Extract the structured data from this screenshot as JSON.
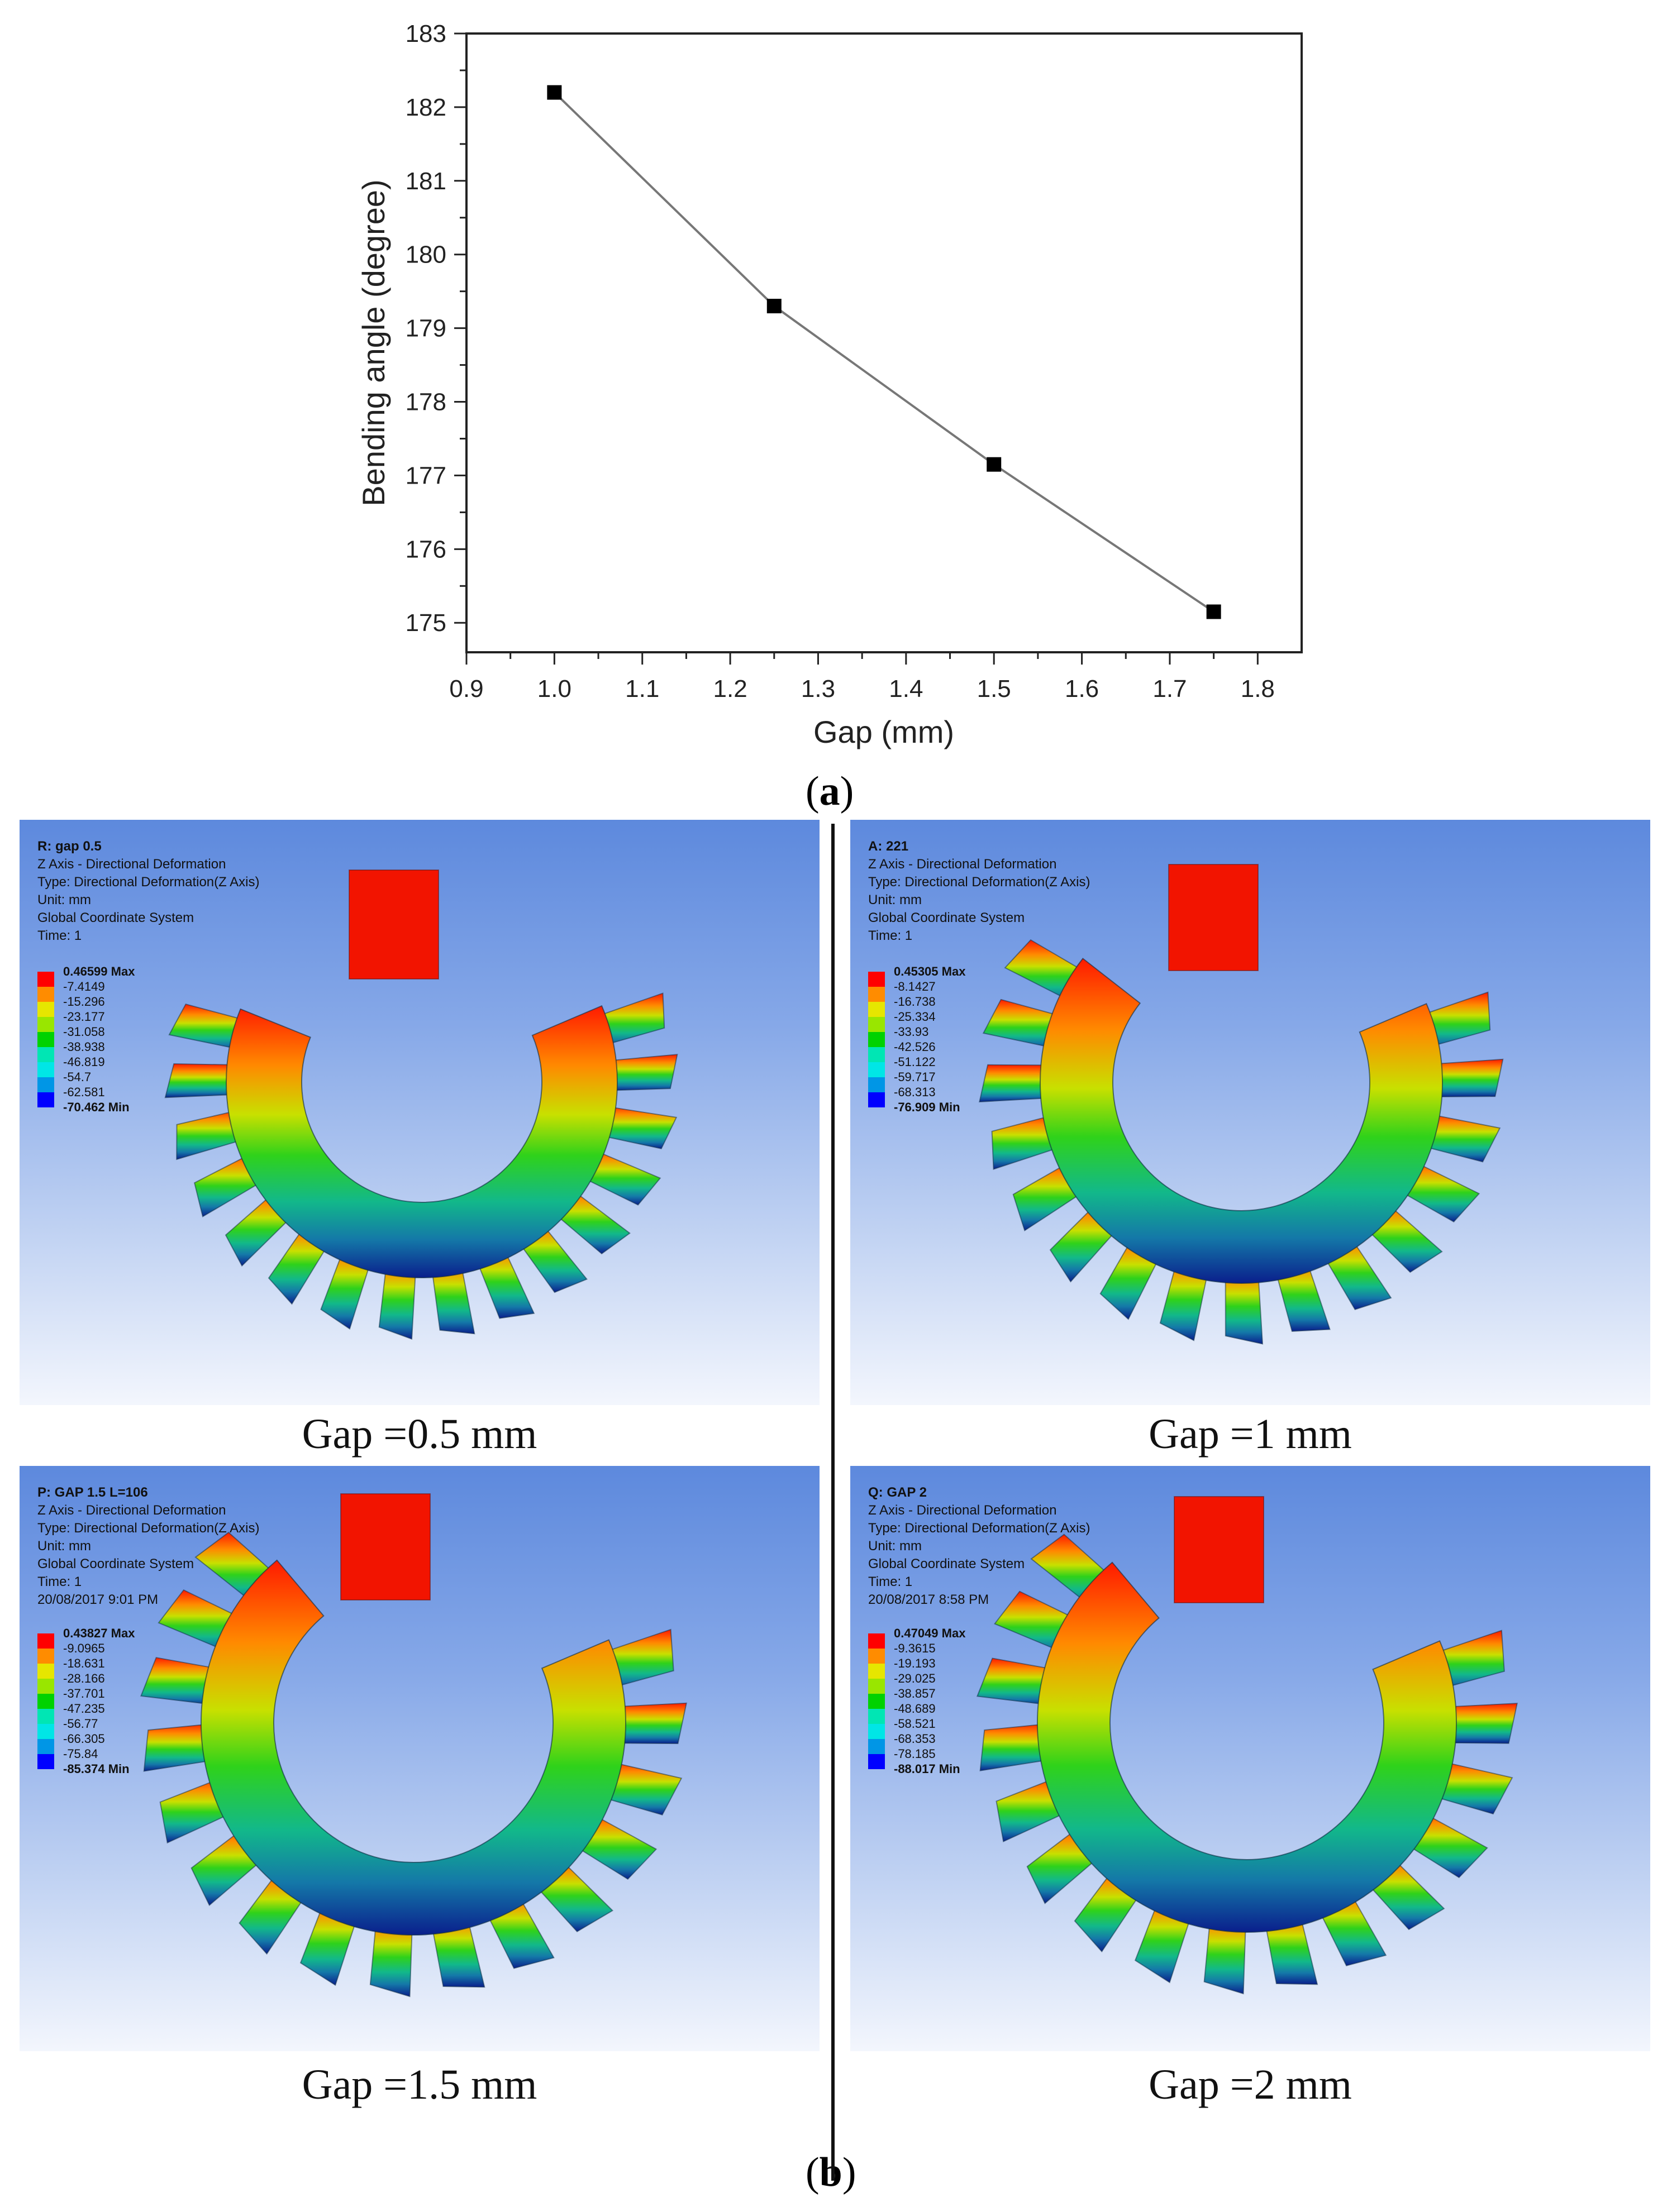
{
  "chart_data": {
    "type": "line",
    "x": [
      1.0,
      1.25,
      1.5,
      1.75
    ],
    "y": [
      182.2,
      179.3,
      177.15,
      175.15
    ],
    "xlabel": "Gap (mm)",
    "ylabel": "Bending angle (degree)",
    "xlim": [
      0.9,
      1.85
    ],
    "ylim": [
      174.6,
      183
    ],
    "xticks": [
      "0.9",
      "1.0",
      "1.1",
      "1.2",
      "1.3",
      "1.4",
      "1.5",
      "1.6",
      "1.7",
      "1.8"
    ],
    "yticks": [
      "175",
      "176",
      "177",
      "178",
      "179",
      "180",
      "181",
      "182",
      "183"
    ],
    "marker": "square",
    "line_color": "#777777",
    "marker_color": "#000000"
  },
  "figure": {
    "label_a": "a",
    "label_b": "b"
  },
  "colormap": [
    "#ff0000",
    "#ff8c00",
    "#e6e600",
    "#99e600",
    "#00d200",
    "#00e6b4",
    "#00e6e6",
    "#0096e6",
    "#0000ff"
  ],
  "panels": [
    {
      "title": "R: gap 0.5",
      "lines": [
        "Z Axis - Directional Deformation",
        "Type: Directional Deformation(Z Axis)",
        "Unit: mm",
        "Global Coordinate System",
        "Time: 1"
      ],
      "legend_max": "0.46599 Max",
      "legend_values": [
        "-7.4149",
        "-15.296",
        "-23.177",
        "-31.058",
        "-38.938",
        "-46.819",
        "-54.7",
        "-62.581"
      ],
      "legend_min": "-70.462 Min",
      "caption": "Gap =0.5 mm"
    },
    {
      "title": "A: 221",
      "lines": [
        "Z Axis - Directional Deformation",
        "Type: Directional Deformation(Z Axis)",
        "Unit: mm",
        "Global Coordinate System",
        "Time: 1"
      ],
      "legend_max": "0.45305 Max",
      "legend_values": [
        "-8.1427",
        "-16.738",
        "-25.334",
        "-33.93",
        "-42.526",
        "-51.122",
        "-59.717",
        "-68.313"
      ],
      "legend_min": "-76.909 Min",
      "caption": "Gap =1 mm"
    },
    {
      "title": "P: GAP 1.5 L=106",
      "lines": [
        "Z Axis - Directional Deformation",
        "Type: Directional Deformation(Z Axis)",
        "Unit: mm",
        "Global Coordinate System",
        "Time: 1",
        "20/08/2017 9:01 PM"
      ],
      "legend_max": "0.43827 Max",
      "legend_values": [
        "-9.0965",
        "-18.631",
        "-28.166",
        "-37.701",
        "-47.235",
        "-56.77",
        "-66.305",
        "-75.84"
      ],
      "legend_min": "-85.374 Min",
      "caption": "Gap =1.5 mm"
    },
    {
      "title": "Q: GAP 2",
      "lines": [
        "Z Axis - Directional Deformation",
        "Type: Directional Deformation(Z Axis)",
        "Unit: mm",
        "Global Coordinate System",
        "Time: 1",
        "20/08/2017 8:58 PM"
      ],
      "legend_max": "0.47049 Max",
      "legend_values": [
        "-9.3615",
        "-19.193",
        "-29.025",
        "-38.857",
        "-48.689",
        "-58.521",
        "-68.353",
        "-78.185"
      ],
      "legend_min": "-88.017 Min",
      "caption": "Gap =2 mm"
    }
  ]
}
